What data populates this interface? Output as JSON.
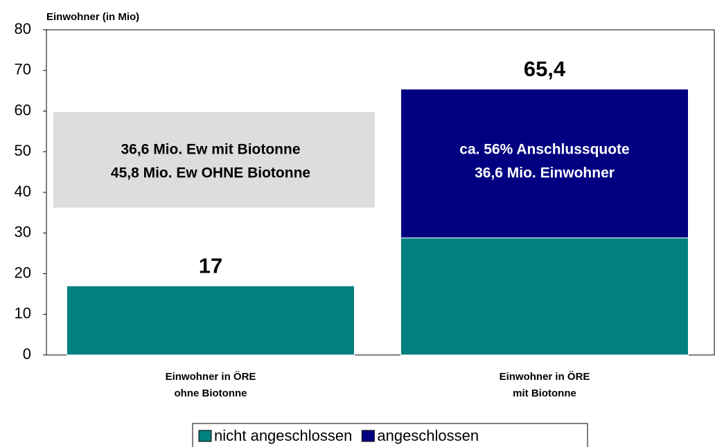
{
  "chart_data": {
    "type": "stacked_bar",
    "title": "Einwohner (in Mio)",
    "categories": [
      "Einwohner in ÖRE\nohne Biotonne",
      "Einwohner in ÖRE\nmit Biotonne"
    ],
    "series": [
      {
        "name": "nicht angeschlossen",
        "color": "#008080",
        "values": [
          17,
          28.8
        ]
      },
      {
        "name": "angeschlossen",
        "color": "#000080",
        "values": [
          null,
          36.6
        ]
      }
    ],
    "totals": [
      17,
      65.4
    ],
    "total_labels": [
      "17",
      "65,4"
    ],
    "annotations": [
      {
        "lines": [
          "36,6 Mio. Ew mit Biotonne",
          "45,8 Mio. Ew OHNE Biotonne"
        ],
        "category": 0
      },
      {
        "lines": [
          "ca. 56% Anschlussquote",
          "36,6 Mio. Einwohner"
        ],
        "category": 1
      }
    ],
    "ylim": [
      0,
      80
    ],
    "yticks": [
      0,
      10,
      20,
      30,
      40,
      50,
      60,
      70,
      80
    ],
    "grid": false,
    "legend": "bottom"
  }
}
